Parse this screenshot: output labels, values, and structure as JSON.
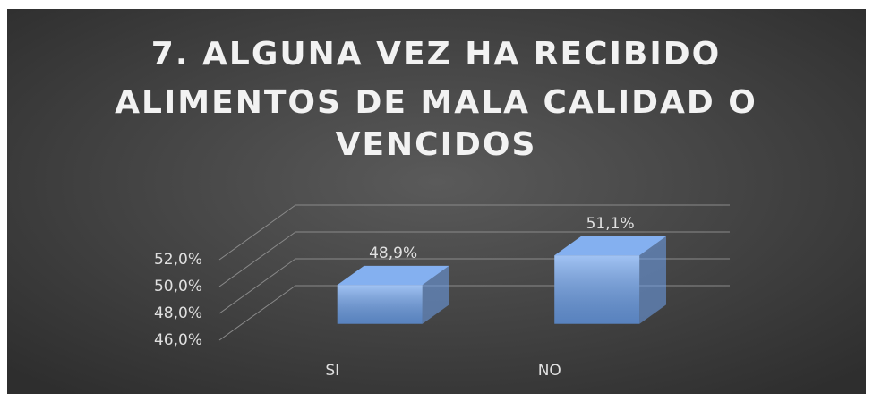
{
  "chart_data": {
    "type": "bar3d",
    "title": [
      "7. ALGUNA VEZ HA RECIBIDO",
      "ALIMENTOS DE MALA CALIDAD O",
      "VENCIDOS"
    ],
    "categories": [
      "SI",
      "NO"
    ],
    "values": [
      48.9,
      51.1
    ],
    "value_labels": [
      "48,9%",
      "51,1%"
    ],
    "color": "#6fa3ee",
    "ylim": [
      46,
      52
    ],
    "yticks": [
      {
        "value": 46,
        "label": "46,0%"
      },
      {
        "value": 48,
        "label": "48,0%"
      },
      {
        "value": 50,
        "label": "50,0%"
      },
      {
        "value": 52,
        "label": "52,0%"
      }
    ],
    "grid": true
  }
}
